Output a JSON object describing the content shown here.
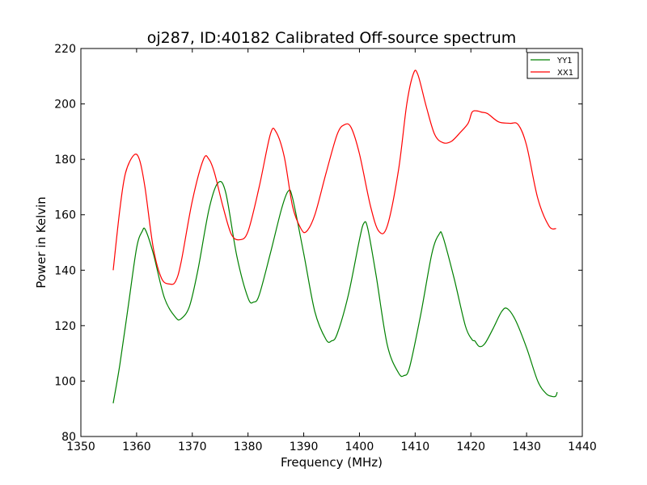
{
  "chart_data": {
    "type": "line",
    "title": "oj287, ID:40182 Calibrated Off-source spectrum",
    "xlabel": "Frequency (MHz)",
    "ylabel": "Power in Kelvin",
    "xlim": [
      1350,
      1440
    ],
    "ylim": [
      80,
      220
    ],
    "xticks": [
      1350,
      1360,
      1370,
      1380,
      1390,
      1400,
      1410,
      1420,
      1430,
      1440
    ],
    "yticks": [
      80,
      100,
      120,
      140,
      160,
      180,
      200,
      220
    ],
    "grid": false,
    "legend_position": "top-right",
    "series": [
      {
        "name": "YY1",
        "color": "#008000",
        "x": [
          1355.8,
          1357,
          1358.5,
          1360,
          1361,
          1361.6,
          1363,
          1365,
          1367,
          1368,
          1369.5,
          1371,
          1373,
          1374.6,
          1376,
          1378,
          1380,
          1381,
          1382,
          1384,
          1386,
          1387.2,
          1388,
          1390,
          1392,
          1394,
          1395,
          1396,
          1398,
          1400,
          1400.8,
          1401.5,
          1403,
          1405,
          1407,
          1408,
          1409,
          1411,
          1413,
          1414.3,
          1415,
          1417,
          1419,
          1420.2,
          1420.7,
          1421.5,
          1422.5,
          1424,
          1425.5,
          1426.5,
          1428,
          1430,
          1432,
          1433.5,
          1434.5,
          1435.2,
          1435.5
        ],
        "y": [
          92,
          106,
          127,
          148,
          154,
          154.5,
          146,
          130,
          123,
          122.5,
          127,
          140,
          162,
          171.5,
          168,
          145,
          130,
          128.5,
          131,
          146,
          162,
          168.5,
          166,
          146,
          125,
          115,
          114.5,
          117,
          131,
          151,
          157,
          155,
          138,
          113,
          103,
          102,
          105,
          124,
          146,
          153,
          152,
          137,
          120,
          115,
          114.5,
          112.5,
          113.5,
          119,
          125,
          126.2,
          122,
          112,
          100,
          95.5,
          94.5,
          94.5,
          96
        ]
      },
      {
        "name": "XX1",
        "color": "#ff0000",
        "x": [
          1355.8,
          1357,
          1358,
          1359.5,
          1360.5,
          1361.5,
          1363,
          1364.5,
          1366,
          1367,
          1368,
          1370,
          1372,
          1373,
          1374,
          1375.5,
          1377,
          1378.5,
          1380,
          1382,
          1384,
          1385,
          1386.5,
          1388,
          1389.5,
          1390.5,
          1392,
          1394,
          1396,
          1397.3,
          1398.5,
          1400,
          1402,
          1403.5,
          1405,
          1407,
          1408.5,
          1409.7,
          1410.5,
          1412,
          1413.5,
          1415,
          1416.5,
          1418,
          1419.5,
          1420.2,
          1421,
          1422,
          1423,
          1425,
          1427,
          1428.5,
          1430,
          1432,
          1434,
          1435.3
        ],
        "y": [
          140,
          162,
          175,
          181.5,
          180,
          170,
          148,
          137,
          135,
          136,
          143,
          165,
          180,
          180,
          175,
          163,
          153,
          151,
          154,
          170,
          189,
          190,
          181,
          163,
          155,
          154,
          160,
          175,
          189,
          192.5,
          191.5,
          182,
          163,
          154,
          156,
          176,
          200,
          211,
          210.5,
          199,
          189,
          186,
          186.5,
          189.5,
          193,
          197,
          197.5,
          197,
          196.5,
          193.5,
          193,
          192.5,
          185,
          166,
          156,
          155
        ]
      }
    ]
  }
}
